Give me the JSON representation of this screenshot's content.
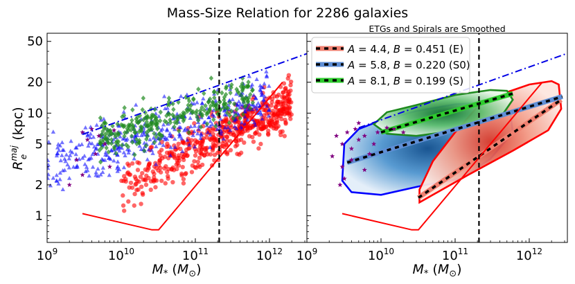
{
  "title": "Mass-Size Relation for 2286 galaxies",
  "colors": {
    "E": "#ff0000",
    "S0": "#0000ff",
    "S": "#1f8a1f",
    "other": "#800080",
    "dashdot": "#0000e6",
    "E_band": "#f08070",
    "S0_band": "#5f8fd6",
    "S_band": "#2ecc2e"
  },
  "chart_data": [
    {
      "type": "scatter",
      "panel": "left",
      "title": "",
      "xlabel": "M_* (M_⊙)",
      "ylabel": "R_e^maj (kpc)",
      "xscale": "log",
      "yscale": "log",
      "xlim": [
        1000000000.0,
        3200000000000.0
      ],
      "ylim": [
        0.55,
        60
      ],
      "xticks": [
        {
          "v": 1000000000.0,
          "mant": "10",
          "exp": "9"
        },
        {
          "v": 10000000000.0,
          "mant": "10",
          "exp": "10"
        },
        {
          "v": 100000000000.0,
          "mant": "10",
          "exp": "11"
        },
        {
          "v": 1000000000000.0,
          "mant": "10",
          "exp": "12"
        }
      ],
      "yticks": [
        {
          "v": 1,
          "label": "1"
        },
        {
          "v": 2,
          "label": "2"
        },
        {
          "v": 5,
          "label": "5"
        },
        {
          "v": 10,
          "label": "10"
        },
        {
          "v": 20,
          "label": "20"
        },
        {
          "v": 50,
          "label": "50"
        }
      ],
      "series": [
        {
          "name": "E",
          "marker": "circle",
          "color": "#ff0000",
          "x_range": [
            10000000000.0,
            2000000000000.0
          ],
          "y_at_x_lo": [
            0.9,
            4
          ],
          "y_at_x_hi": [
            6,
            28
          ]
        },
        {
          "name": "S0",
          "marker": "triangle",
          "color": "#0000ff",
          "x_range": [
            1000000000.0,
            1000000000000.0
          ],
          "y_at_x_lo": [
            1.3,
            7
          ],
          "y_at_x_hi": [
            6,
            35
          ]
        },
        {
          "name": "S",
          "marker": "diamond",
          "color": "#1f8a1f",
          "x_range": [
            5000000000.0,
            600000000000.0
          ],
          "y_at_x_lo": [
            3,
            10
          ],
          "y_at_x_hi": [
            8,
            30
          ]
        },
        {
          "name": "other",
          "marker": "star",
          "color": "#800080",
          "points": [
            [
              3000000000.0,
              6.5
            ],
            [
              3500000000.0,
              5.5
            ],
            [
              4000000000.0,
              7
            ],
            [
              4500000000.0,
              4
            ],
            [
              5000000000.0,
              6
            ],
            [
              6000000000.0,
              5
            ],
            [
              7000000000.0,
              3
            ],
            [
              2500000000.0,
              3.5
            ],
            [
              3000000000.0,
              2.5
            ],
            [
              8000000000.0,
              6.8
            ],
            [
              2000000000.0,
              2
            ]
          ]
        }
      ],
      "lines": [
        {
          "name": "dash-dot upper bound",
          "style": "dashdot",
          "color": "#0000e6",
          "x": [
            3000000000.0,
            3200000000000.0
          ],
          "y": [
            6.2,
            38
          ]
        },
        {
          "name": "lower envelope",
          "style": "solid",
          "color": "#ff0000",
          "x": [
            3000000000.0,
            26000000000.0,
            32000000000.0,
            1500000000000.0
          ],
          "y": [
            1.05,
            0.73,
            0.73,
            20
          ]
        },
        {
          "name": "vertical mass cut",
          "style": "dashed",
          "color": "#000000",
          "x": [
            210000000000.0,
            210000000000.0
          ],
          "y": [
            0.55,
            60
          ]
        }
      ]
    },
    {
      "type": "contour",
      "panel": "right",
      "title": "ETGs and Spirals are Smoothed",
      "xlabel": "M_* (M_⊙)",
      "ylabel": "",
      "xscale": "log",
      "yscale": "log",
      "xlim": [
        1000000000.0,
        3200000000000.0
      ],
      "ylim": [
        0.55,
        60
      ],
      "xticks": [
        {
          "v": 1000000000.0,
          "mant": "10",
          "exp": "9"
        },
        {
          "v": 10000000000.0,
          "mant": "10",
          "exp": "10"
        },
        {
          "v": 100000000000.0,
          "mant": "10",
          "exp": "11"
        },
        {
          "v": 1000000000000.0,
          "mant": "10",
          "exp": "12"
        }
      ],
      "legend": {
        "position": "top-left",
        "entries": [
          {
            "key": "E",
            "A": "4.4",
            "B": "0.451",
            "tag": "(E)",
            "color": "#f08070"
          },
          {
            "key": "S0",
            "A": "5.8",
            "B": "0.220",
            "tag": "(S0)",
            "color": "#5f8fd6"
          },
          {
            "key": "S",
            "A": "8.1",
            "B": "0.199",
            "tag": "(S)",
            "color": "#2ecc2e"
          }
        ]
      },
      "fits": [
        {
          "name": "E",
          "x": [
            32000000000.0,
            2700000000000.0
          ],
          "y": [
            1.5,
            13.5
          ]
        },
        {
          "name": "S0",
          "x": [
            3500000000.0,
            2800000000000.0
          ],
          "y": [
            3.3,
            14.5
          ]
        },
        {
          "name": "S",
          "x": [
            10000000000.0,
            600000000000.0
          ],
          "y": [
            6.5,
            15.5
          ]
        }
      ],
      "contours": [
        {
          "name": "E",
          "color": "#ff0000",
          "fill": "#f08070",
          "x_range": [
            30000000000.0,
            2700000000000.0
          ]
        },
        {
          "name": "S0",
          "color": "#0000ff",
          "fill": "#2a70c0",
          "x_range": [
            3000000000.0,
            600000000000.0
          ]
        },
        {
          "name": "S",
          "color": "#1f8a1f",
          "fill": "#2ea043",
          "x_range": [
            8000000000.0,
            600000000000.0
          ]
        }
      ],
      "stars": [
        [
          2500000000.0,
          6
        ],
        [
          3000000000.0,
          5
        ],
        [
          3500000000.0,
          6.5
        ],
        [
          4000000000.0,
          4.5
        ],
        [
          4500000000.0,
          7
        ],
        [
          5000000000.0,
          5.5
        ],
        [
          6000000000.0,
          6
        ],
        [
          7000000000.0,
          4
        ],
        [
          8000000000.0,
          5
        ],
        [
          3000000000.0,
          3
        ],
        [
          3200000000.0,
          2.3
        ],
        [
          2800000000.0,
          2
        ],
        [
          4000000000.0,
          3.5
        ],
        [
          6000000000.0,
          2.8
        ],
        [
          9000000000.0,
          6.5
        ],
        [
          12000000000.0,
          7.2
        ],
        [
          15000000000.0,
          7
        ],
        [
          20000000000.0,
          6.5
        ],
        [
          2200000000.0,
          3.8
        ],
        [
          5000000000.0,
          8
        ]
      ],
      "lines": [
        {
          "name": "dash-dot upper bound",
          "style": "dashdot",
          "color": "#0000e6",
          "x": [
            5000000000.0,
            3200000000000.0
          ],
          "y": [
            7.2,
            38
          ]
        },
        {
          "name": "lower envelope",
          "style": "solid",
          "color": "#ff0000",
          "x": [
            3000000000.0,
            26000000000.0,
            32000000000.0,
            1500000000000.0
          ],
          "y": [
            1.05,
            0.73,
            0.73,
            20
          ]
        },
        {
          "name": "vertical mass cut",
          "style": "dashed",
          "color": "#000000",
          "x": [
            210000000000.0,
            210000000000.0
          ],
          "y": [
            0.55,
            60
          ]
        }
      ]
    }
  ]
}
